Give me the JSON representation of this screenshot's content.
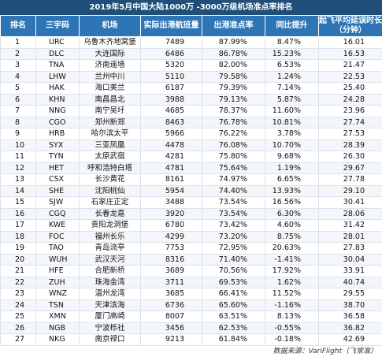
{
  "table": {
    "title": "2019年5月中国大陆1000万 -3000万级机场准点率排名",
    "columns": [
      "排名",
      "三字码",
      "机场",
      "实际出港航班量",
      "出港准点率",
      "同比提升",
      "起飞平均延误时长"
    ],
    "last_column_unit": "（分钟）",
    "rows": [
      [
        "1",
        "URC",
        "乌鲁木齐地窝堡",
        "7489",
        "87.99%",
        "8.47%",
        "16.01"
      ],
      [
        "2",
        "DLC",
        "大连国际",
        "6486",
        "86.78%",
        "15.23%",
        "16.53"
      ],
      [
        "3",
        "TNA",
        "济南遥墙",
        "5320",
        "82.00%",
        "6.53%",
        "21.47"
      ],
      [
        "4",
        "LHW",
        "兰州中川",
        "5110",
        "79.58%",
        "1.24%",
        "22.53"
      ],
      [
        "5",
        "HAK",
        "海口美兰",
        "6187",
        "79.39%",
        "7.14%",
        "25.40"
      ],
      [
        "6",
        "KHN",
        "南昌昌北",
        "3988",
        "79.13%",
        "5.87%",
        "24.28"
      ],
      [
        "7",
        "NNG",
        "南宁吴圩",
        "4685",
        "78.37%",
        "11.60%",
        "23.96"
      ],
      [
        "8",
        "CGO",
        "郑州新郑",
        "8463",
        "76.78%",
        "10.81%",
        "27.74"
      ],
      [
        "9",
        "HRB",
        "哈尔滨太平",
        "5966",
        "76.22%",
        "3.78%",
        "27.53"
      ],
      [
        "10",
        "SYX",
        "三亚凤凰",
        "4478",
        "76.08%",
        "10.70%",
        "28.39"
      ],
      [
        "11",
        "TYN",
        "太原武宿",
        "4281",
        "75.80%",
        "9.68%",
        "26.30"
      ],
      [
        "12",
        "HET",
        "呼和浩特白塔",
        "4781",
        "75.64%",
        "1.19%",
        "29.67"
      ],
      [
        "13",
        "CSX",
        "长沙黄花",
        "8161",
        "74.97%",
        "6.65%",
        "27.78"
      ],
      [
        "14",
        "SHE",
        "沈阳桃仙",
        "5954",
        "74.40%",
        "13.93%",
        "29.10"
      ],
      [
        "15",
        "SJW",
        "石家庄正定",
        "3488",
        "73.54%",
        "16.56%",
        "30.41"
      ],
      [
        "16",
        "CGQ",
        "长春龙嘉",
        "3920",
        "73.54%",
        "6.30%",
        "28.06"
      ],
      [
        "17",
        "KWE",
        "贵阳龙洞堡",
        "6780",
        "73.42%",
        "4.60%",
        "31.42"
      ],
      [
        "18",
        "FOC",
        "福州长乐",
        "4299",
        "73.20%",
        "8.75%",
        "28.01"
      ],
      [
        "19",
        "TAO",
        "青岛流亭",
        "7753",
        "72.95%",
        "20.63%",
        "27.83"
      ],
      [
        "20",
        "WUH",
        "武汉天河",
        "8316",
        "71.40%",
        "-1.41%",
        "30.04"
      ],
      [
        "21",
        "HFE",
        "合肥新桥",
        "3689",
        "70.56%",
        "17.92%",
        "33.91"
      ],
      [
        "22",
        "ZUH",
        "珠海金湾",
        "3711",
        "69.53%",
        "1.62%",
        "40.74"
      ],
      [
        "23",
        "WNZ",
        "温州龙湾",
        "3685",
        "66.41%",
        "11.52%",
        "29.55"
      ],
      [
        "24",
        "TSN",
        "天津滨海",
        "6736",
        "65.60%",
        "-1.16%",
        "38.70"
      ],
      [
        "25",
        "XMN",
        "厦门高崎",
        "8007",
        "63.51%",
        "8.13%",
        "36.58"
      ],
      [
        "26",
        "NGB",
        "宁波栎社",
        "3456",
        "62.53%",
        "-0.55%",
        "36.82"
      ],
      [
        "27",
        "NKG",
        "南京禄口",
        "9213",
        "61.84%",
        "-0.18%",
        "42.69"
      ]
    ],
    "source": "数据来源：VariFlight（飞常准）"
  }
}
